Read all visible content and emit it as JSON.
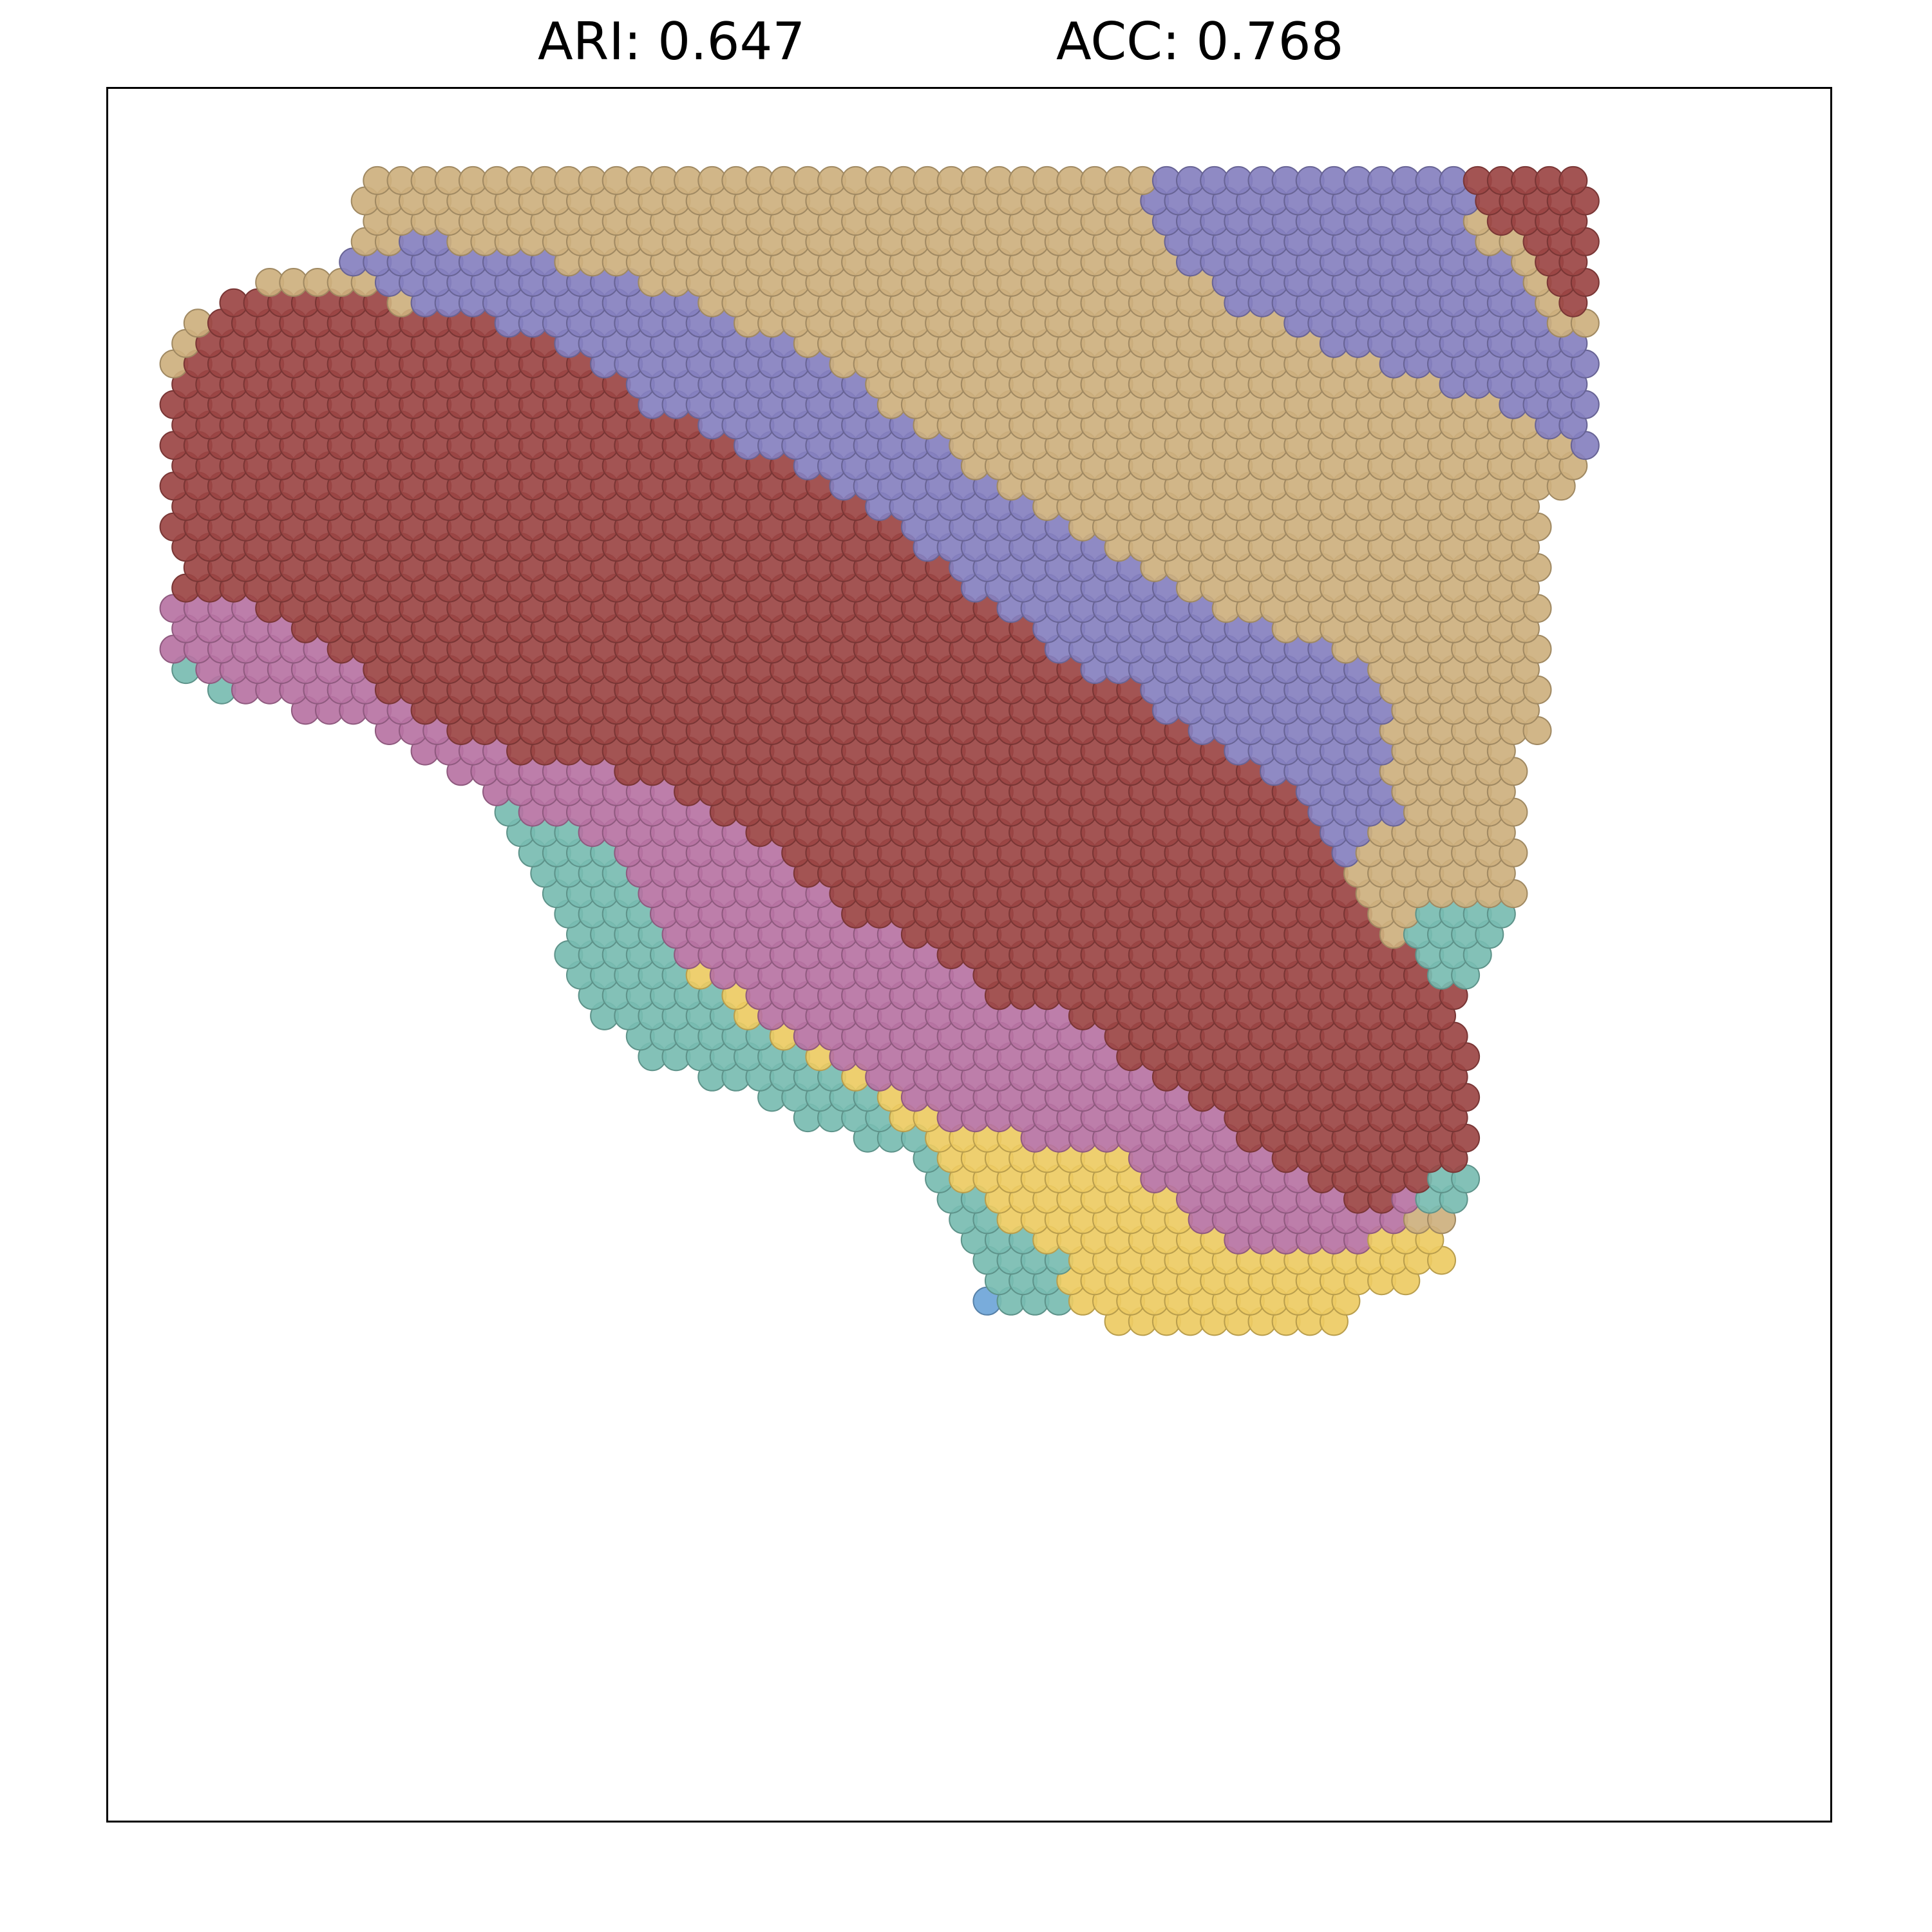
{
  "header": {
    "ari_text": "ARI: 0.647",
    "acc_text": "ACC: 0.768"
  },
  "chart_data": {
    "type": "scatter",
    "title": "",
    "metrics": {
      "ARI": 0.647,
      "ACC": 0.768
    },
    "xlabel": "",
    "ylabel": "",
    "grid": false,
    "legend": "none",
    "axes_ticks": "hidden",
    "marker": "circle",
    "xlim": [
      0,
      75
    ],
    "ylim": [
      0,
      72
    ],
    "palette": {
      "tan": "#cdb07e",
      "purple": "#8580bf",
      "darkred": "#9b4544",
      "pink": "#b773a3",
      "yellow": "#edcb63",
      "teal": "#78bcb1",
      "blue": "#6ea5d8"
    },
    "region_order": [
      "tan",
      "purple",
      "darkred",
      "pink",
      "yellow",
      "teal",
      "blue"
    ],
    "tissue_outline": [
      [
        11.2,
        68.3
      ],
      [
        64.4,
        68.3
      ],
      [
        64.4,
        56.2
      ],
      [
        62.5,
        54.5
      ],
      [
        62.5,
        45.2
      ],
      [
        61.5,
        44.6
      ],
      [
        61.5,
        37.1
      ],
      [
        59.9,
        36.1
      ],
      [
        58.9,
        34.0
      ],
      [
        59.5,
        27.9
      ],
      [
        57.9,
        22.7
      ],
      [
        54.4,
        21.7
      ],
      [
        54.4,
        20.0
      ],
      [
        47.9,
        20.0
      ],
      [
        40.6,
        21.2
      ],
      [
        37.2,
        21.0
      ],
      [
        37.9,
        22.7
      ],
      [
        34.6,
        27.6
      ],
      [
        28.9,
        29.8
      ],
      [
        23.5,
        31.7
      ],
      [
        20.1,
        34.3
      ],
      [
        19.6,
        37.0
      ],
      [
        18.1,
        39.3
      ],
      [
        17.4,
        42.1
      ],
      [
        14.8,
        43.8
      ],
      [
        11.5,
        45.6
      ],
      [
        6.1,
        46.6
      ],
      [
        2.7,
        47.7
      ],
      [
        2.9,
        52.9
      ],
      [
        2.6,
        57.3
      ],
      [
        2.7,
        60.5
      ],
      [
        4.6,
        63.3
      ],
      [
        6.7,
        64.0
      ],
      [
        10.6,
        64.8
      ]
    ],
    "regions": {
      "tan": [
        [
          11.2,
          68.3
        ],
        [
          46.0,
          68.3
        ],
        [
          45.2,
          66.8
        ],
        [
          48.8,
          63.0
        ],
        [
          56.2,
          60.4
        ],
        [
          62.0,
          58.5
        ],
        [
          64.4,
          56.8
        ],
        [
          64.4,
          51.2
        ],
        [
          62.9,
          48.2
        ],
        [
          61.8,
          45.9
        ],
        [
          61.4,
          45.1
        ],
        [
          56.0,
          44.7
        ],
        [
          55.5,
          47.5
        ],
        [
          51.5,
          49.5
        ],
        [
          49.5,
          50.0
        ],
        [
          40.1,
          54.6
        ],
        [
          37.9,
          56.2
        ],
        [
          33.0,
          59.5
        ],
        [
          31.6,
          60.4
        ],
        [
          28.3,
          62.0
        ],
        [
          25.5,
          63.4
        ],
        [
          19.6,
          64.7
        ],
        [
          14.2,
          65.7
        ],
        [
          11.6,
          66.4
        ]
      ],
      "purple": [
        [
          46.0,
          68.3
        ],
        [
          58.9,
          68.3
        ],
        [
          59.4,
          66.5
        ],
        [
          61.8,
          63.6
        ],
        [
          64.4,
          61.0
        ],
        [
          64.4,
          56.8
        ],
        [
          62.0,
          58.5
        ],
        [
          56.2,
          60.4
        ],
        [
          48.8,
          63.0
        ],
        [
          45.2,
          66.8
        ]
      ],
      "purple2": [
        [
          9.8,
          64.8
        ],
        [
          10.7,
          65.5
        ],
        [
          14.2,
          65.7
        ],
        [
          19.6,
          64.7
        ],
        [
          25.5,
          63.4
        ],
        [
          28.3,
          62.0
        ],
        [
          31.6,
          60.4
        ],
        [
          33.0,
          59.5
        ],
        [
          37.9,
          56.2
        ],
        [
          40.1,
          54.6
        ],
        [
          49.5,
          50.0
        ],
        [
          51.5,
          49.5
        ],
        [
          55.5,
          47.5
        ],
        [
          56.0,
          44.7
        ],
        [
          55.7,
          43.2
        ],
        [
          57.3,
          42.2
        ],
        [
          55.7,
          41.7
        ],
        [
          54.9,
          40.4
        ],
        [
          54.3,
          39.2
        ],
        [
          53.5,
          39.6
        ],
        [
          52.9,
          41.3
        ],
        [
          50.5,
          43.6
        ],
        [
          46.8,
          45.2
        ],
        [
          45.3,
          46.8
        ],
        [
          42.8,
          47.8
        ],
        [
          38.3,
          50.5
        ],
        [
          35.4,
          52.9
        ],
        [
          33.3,
          54.7
        ],
        [
          30.4,
          56.0
        ],
        [
          26.9,
          57.4
        ],
        [
          23.3,
          58.9
        ],
        [
          20.6,
          60.8
        ],
        [
          16.9,
          62.3
        ],
        [
          13.2,
          63.0
        ]
      ],
      "darkred_top": [
        [
          59.0,
          68.3
        ],
        [
          64.4,
          68.3
        ],
        [
          64.4,
          63.6
        ],
        [
          63.1,
          62.5
        ],
        [
          62.6,
          64.5
        ],
        [
          60.8,
          66.1
        ],
        [
          59.4,
          67.4
        ]
      ],
      "darkred": [
        [
          4.8,
          62.6
        ],
        [
          6.4,
          63.9
        ],
        [
          11.5,
          63.3
        ],
        [
          13.2,
          63.0
        ],
        [
          16.9,
          62.3
        ],
        [
          20.6,
          60.8
        ],
        [
          23.3,
          58.9
        ],
        [
          26.9,
          57.4
        ],
        [
          30.4,
          56.0
        ],
        [
          33.3,
          54.7
        ],
        [
          35.4,
          52.9
        ],
        [
          38.3,
          50.5
        ],
        [
          42.8,
          47.8
        ],
        [
          45.3,
          46.8
        ],
        [
          46.8,
          45.2
        ],
        [
          50.5,
          43.6
        ],
        [
          52.9,
          41.3
        ],
        [
          53.5,
          39.6
        ],
        [
          54.3,
          39.2
        ],
        [
          55.3,
          38.1
        ],
        [
          55.2,
          36.8
        ],
        [
          56.7,
          36.3
        ],
        [
          57.3,
          35.6
        ],
        [
          59.0,
          34.1
        ],
        [
          62.1,
          33.6
        ],
        [
          62.0,
          31.5
        ],
        [
          61.2,
          29.8
        ],
        [
          59.9,
          28.2
        ],
        [
          58.4,
          27.2
        ],
        [
          57.0,
          26.0
        ],
        [
          53.9,
          25.4
        ],
        [
          53.0,
          26.4
        ],
        [
          50.7,
          27.4
        ],
        [
          48.8,
          29.2
        ],
        [
          44.5,
          31.3
        ],
        [
          42.2,
          33.4
        ],
        [
          39.5,
          33.8
        ],
        [
          37.0,
          35.6
        ],
        [
          33.3,
          37.2
        ],
        [
          30.4,
          39.0
        ],
        [
          28.6,
          40.8
        ],
        [
          25.7,
          42.6
        ],
        [
          23.5,
          43.3
        ],
        [
          20.3,
          44.3
        ],
        [
          17.4,
          44.4
        ],
        [
          14.5,
          45.6
        ],
        [
          13.1,
          46.1
        ],
        [
          11.8,
          47.4
        ],
        [
          9.0,
          49.2
        ],
        [
          6.6,
          50.6
        ],
        [
          3.2,
          51.2
        ],
        [
          2.7,
          53.0
        ],
        [
          2.7,
          60.0
        ],
        [
          3.6,
          61.7
        ]
      ],
      "pink": [
        [
          2.9,
          53.0
        ],
        [
          6.6,
          50.6
        ],
        [
          9.0,
          49.2
        ],
        [
          11.8,
          47.4
        ],
        [
          13.1,
          46.1
        ],
        [
          14.5,
          45.6
        ],
        [
          17.4,
          44.4
        ],
        [
          20.3,
          44.3
        ],
        [
          23.5,
          43.3
        ],
        [
          25.7,
          42.6
        ],
        [
          28.6,
          40.8
        ],
        [
          30.4,
          39.0
        ],
        [
          33.3,
          37.2
        ],
        [
          37.0,
          35.6
        ],
        [
          39.5,
          33.8
        ],
        [
          42.2,
          33.4
        ],
        [
          44.5,
          31.3
        ],
        [
          48.8,
          29.2
        ],
        [
          50.7,
          27.4
        ],
        [
          53.0,
          26.4
        ],
        [
          53.9,
          25.4
        ],
        [
          57.0,
          26.0
        ],
        [
          56.8,
          24.9
        ],
        [
          55.3,
          24.3
        ],
        [
          54.0,
          23.6
        ],
        [
          51.5,
          23.3
        ],
        [
          48.7,
          24.0
        ],
        [
          46.1,
          26.1
        ],
        [
          44.8,
          27.5
        ],
        [
          41.2,
          28.3
        ],
        [
          38.3,
          28.5
        ],
        [
          36.2,
          29.4
        ],
        [
          32.8,
          30.9
        ],
        [
          30.0,
          32.6
        ],
        [
          27.3,
          34.6
        ],
        [
          24.8,
          36.3
        ],
        [
          22.5,
          37.6
        ],
        [
          20.0,
          38.4
        ],
        [
          16.7,
          40.0
        ],
        [
          13.8,
          41.4
        ],
        [
          11.6,
          42.5
        ],
        [
          7.7,
          44.2
        ],
        [
          4.6,
          45.1
        ],
        [
          2.7,
          45.8
        ],
        [
          2.7,
          51.0
        ]
      ],
      "yellow": [
        [
          2.7,
          45.8
        ],
        [
          4.6,
          45.1
        ],
        [
          7.7,
          44.2
        ],
        [
          11.6,
          42.5
        ],
        [
          13.8,
          41.4
        ],
        [
          16.7,
          40.0
        ],
        [
          20.0,
          38.4
        ],
        [
          22.5,
          37.6
        ],
        [
          24.8,
          36.3
        ],
        [
          27.3,
          34.6
        ],
        [
          30.0,
          32.6
        ],
        [
          32.8,
          30.9
        ],
        [
          36.2,
          29.4
        ],
        [
          38.3,
          28.5
        ],
        [
          41.2,
          28.3
        ],
        [
          44.8,
          27.5
        ],
        [
          46.1,
          26.1
        ],
        [
          48.7,
          24.0
        ],
        [
          51.5,
          23.3
        ],
        [
          54.0,
          23.6
        ],
        [
          55.3,
          24.3
        ],
        [
          56.8,
          24.9
        ],
        [
          58.9,
          24.6
        ],
        [
          58.1,
          22.5
        ],
        [
          55.6,
          22.0
        ],
        [
          54.0,
          21.0
        ],
        [
          52.8,
          20.0
        ],
        [
          45.5,
          20.0
        ],
        [
          40.6,
          21.2
        ],
        [
          37.6,
          22.8
        ],
        [
          34.7,
          24.7
        ],
        [
          31.1,
          27.3
        ],
        [
          28.7,
          29.0
        ],
        [
          25.8,
          30.6
        ],
        [
          23.7,
          32.4
        ],
        [
          21.4,
          34.8
        ],
        [
          19.2,
          37.2
        ],
        [
          17.6,
          39.8
        ],
        [
          15.1,
          42.4
        ],
        [
          12.2,
          43.6
        ],
        [
          8.7,
          44.8
        ],
        [
          5.7,
          46.4
        ],
        [
          3.4,
          47.5
        ],
        [
          2.7,
          48.0
        ]
      ],
      "yellow_top": [
        [
          2.7,
          48.0
        ],
        [
          5.7,
          46.4
        ],
        [
          8.7,
          44.8
        ],
        [
          12.2,
          43.6
        ],
        [
          15.1,
          42.4
        ],
        [
          17.6,
          39.8
        ],
        [
          19.2,
          37.2
        ],
        [
          21.4,
          34.8
        ],
        [
          23.7,
          32.4
        ],
        [
          25.8,
          30.6
        ],
        [
          28.7,
          29.0
        ],
        [
          31.1,
          27.3
        ],
        [
          34.7,
          24.7
        ],
        [
          37.6,
          22.8
        ],
        [
          40.6,
          21.2
        ],
        [
          42.2,
          21.6
        ],
        [
          41.6,
          23.2
        ],
        [
          38.7,
          25.3
        ],
        [
          36.9,
          26.7
        ],
        [
          35.3,
          28.7
        ],
        [
          33.1,
          30.2
        ],
        [
          30.6,
          31.7
        ],
        [
          27.9,
          32.9
        ],
        [
          25.7,
          35.1
        ],
        [
          24.2,
          37.4
        ],
        [
          22.7,
          39.7
        ],
        [
          20.1,
          41.2
        ],
        [
          16.2,
          42.4
        ],
        [
          12.9,
          43.8
        ],
        [
          9.3,
          45.5
        ],
        [
          5.5,
          47.1
        ],
        [
          2.7,
          48.4
        ]
      ],
      "teal": [
        [
          2.7,
          48.4
        ],
        [
          5.5,
          47.1
        ],
        [
          9.3,
          45.5
        ],
        [
          12.9,
          43.8
        ],
        [
          16.2,
          42.4
        ],
        [
          20.1,
          41.2
        ],
        [
          22.7,
          39.7
        ],
        [
          24.2,
          37.4
        ],
        [
          25.7,
          35.1
        ],
        [
          27.9,
          32.9
        ],
        [
          30.6,
          31.7
        ],
        [
          33.1,
          30.2
        ],
        [
          35.3,
          28.7
        ],
        [
          36.9,
          26.7
        ],
        [
          38.7,
          25.3
        ],
        [
          41.6,
          23.2
        ],
        [
          42.2,
          21.6
        ],
        [
          40.6,
          21.2
        ],
        [
          37.5,
          21.8
        ],
        [
          34.6,
          23.9
        ],
        [
          31.4,
          26.5
        ],
        [
          28.9,
          29.0
        ],
        [
          25.3,
          30.0
        ],
        [
          22.3,
          31.1
        ],
        [
          19.3,
          32.9
        ],
        [
          16.9,
          34.6
        ],
        [
          14.3,
          36.6
        ],
        [
          11.4,
          38.7
        ],
        [
          9.1,
          41.5
        ],
        [
          6.4,
          43.1
        ],
        [
          3.7,
          44.7
        ],
        [
          2.7,
          45.2
        ]
      ],
      "teal_right": [
        [
          58.4,
          38.4
        ],
        [
          61.2,
          37.9
        ],
        [
          62.1,
          37.0
        ],
        [
          62.0,
          33.6
        ],
        [
          59.0,
          34.1
        ],
        [
          57.3,
          35.6
        ],
        [
          56.7,
          36.3
        ],
        [
          56.6,
          37.6
        ]
      ],
      "teal_right2": [
        [
          57.0,
          26.0
        ],
        [
          58.4,
          27.2
        ],
        [
          59.9,
          28.2
        ],
        [
          61.2,
          29.8
        ],
        [
          61.6,
          26.6
        ],
        [
          61.3,
          24.4
        ],
        [
          60.6,
          22.8
        ],
        [
          59.1,
          22.4
        ],
        [
          58.1,
          23.6
        ],
        [
          58.2,
          25.3
        ]
      ],
      "blue": [
        [
          14.3,
          36.6
        ],
        [
          16.9,
          34.6
        ],
        [
          19.3,
          32.9
        ],
        [
          22.3,
          31.1
        ],
        [
          25.3,
          30.0
        ],
        [
          28.9,
          29.0
        ],
        [
          31.4,
          26.5
        ],
        [
          34.6,
          23.9
        ],
        [
          37.5,
          21.8
        ],
        [
          40.6,
          21.2
        ],
        [
          40.0,
          19.9
        ],
        [
          37.2,
          19.9
        ],
        [
          32.2,
          20.3
        ],
        [
          26.8,
          21.7
        ],
        [
          23.3,
          23.2
        ],
        [
          20.7,
          25.6
        ],
        [
          19.3,
          28.0
        ],
        [
          17.7,
          30.4
        ],
        [
          15.9,
          32.9
        ],
        [
          14.3,
          35.2
        ]
      ]
    },
    "hex_rows": 85,
    "hex_cols": 72
  }
}
